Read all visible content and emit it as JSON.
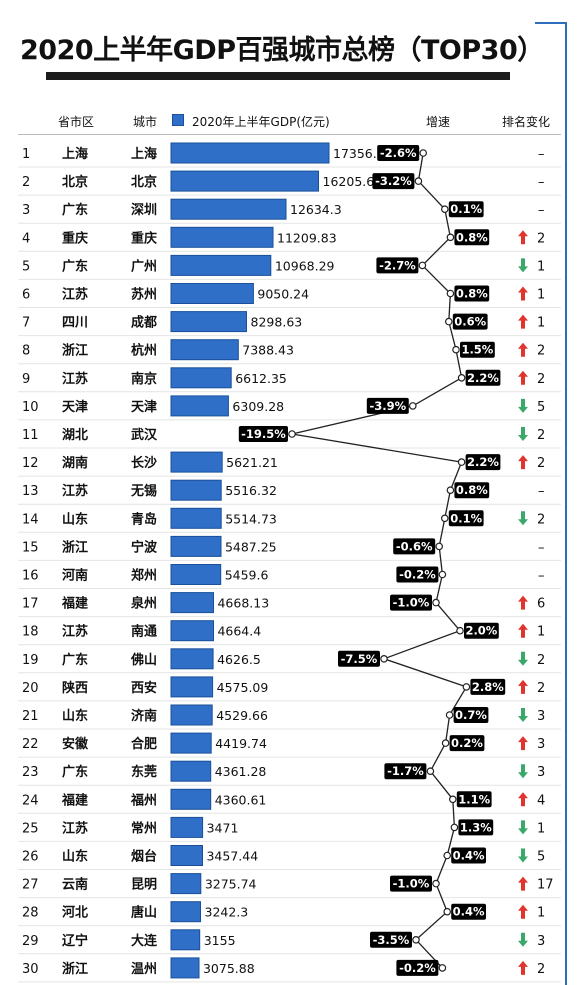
{
  "title": "2020上半年GDP百强城市总榜（TOP30）",
  "headers": {
    "province": "省市区",
    "city": "城市",
    "gdp": "2020年上半年GDP(亿元)",
    "growth": "增速",
    "rank_change": "排名变化"
  },
  "colors": {
    "bar": "#2f6fc7",
    "bar_border": "#1a4f9a",
    "up_arrow": "#e0342f",
    "down_arrow": "#3aa86b",
    "growth_label_bg": "#000000",
    "growth_label_text": "#ffffff"
  },
  "chart_data": {
    "type": "bar",
    "orientation": "horizontal",
    "xlim": [
      0,
      18000
    ],
    "series": [
      {
        "name": "2020年上半年GDP(亿元)",
        "values": [
          17356.8,
          16205.6,
          12634.3,
          11209.83,
          10968.29,
          9050.24,
          8298.63,
          7388.43,
          6612.35,
          6309.28,
          null,
          5621.21,
          5516.32,
          5514.73,
          5487.25,
          5459.6,
          4668.13,
          4664.4,
          4626.5,
          4575.09,
          4529.66,
          4419.74,
          4361.28,
          4360.61,
          3471,
          3457.44,
          3275.74,
          3242.3,
          3155,
          3075.88
        ]
      },
      {
        "name": "增速",
        "values": [
          -2.6,
          -3.2,
          0.1,
          0.8,
          -2.7,
          0.8,
          0.6,
          1.5,
          2.2,
          -3.9,
          -19.5,
          2.2,
          0.8,
          0.1,
          -0.6,
          -0.2,
          -1.0,
          2.0,
          -7.5,
          2.8,
          0.7,
          0.2,
          -1.7,
          1.1,
          1.3,
          0.4,
          -1.0,
          0.4,
          -3.5,
          -0.2
        ]
      }
    ],
    "rows": [
      {
        "rank": "1",
        "province": "上海",
        "city": "上海",
        "gdp_label": "17356.8",
        "growth_label": "-2.6%",
        "change_dir": "",
        "change": "–"
      },
      {
        "rank": "2",
        "province": "北京",
        "city": "北京",
        "gdp_label": "16205.6",
        "growth_label": "-3.2%",
        "change_dir": "",
        "change": "–"
      },
      {
        "rank": "3",
        "province": "广东",
        "city": "深圳",
        "gdp_label": "12634.3",
        "growth_label": "0.1%",
        "change_dir": "",
        "change": "–"
      },
      {
        "rank": "4",
        "province": "重庆",
        "city": "重庆",
        "gdp_label": "11209.83",
        "growth_label": "0.8%",
        "change_dir": "up",
        "change": "2"
      },
      {
        "rank": "5",
        "province": "广东",
        "city": "广州",
        "gdp_label": "10968.29",
        "growth_label": "-2.7%",
        "change_dir": "down",
        "change": "1"
      },
      {
        "rank": "6",
        "province": "江苏",
        "city": "苏州",
        "gdp_label": "9050.24",
        "growth_label": "0.8%",
        "change_dir": "up",
        "change": "1"
      },
      {
        "rank": "7",
        "province": "四川",
        "city": "成都",
        "gdp_label": "8298.63",
        "growth_label": "0.6%",
        "change_dir": "up",
        "change": "1"
      },
      {
        "rank": "8",
        "province": "浙江",
        "city": "杭州",
        "gdp_label": "7388.43",
        "growth_label": "1.5%",
        "change_dir": "up",
        "change": "2"
      },
      {
        "rank": "9",
        "province": "江苏",
        "city": "南京",
        "gdp_label": "6612.35",
        "growth_label": "2.2%",
        "change_dir": "up",
        "change": "2"
      },
      {
        "rank": "10",
        "province": "天津",
        "city": "天津",
        "gdp_label": "6309.28",
        "growth_label": "-3.9%",
        "change_dir": "down",
        "change": "5"
      },
      {
        "rank": "11",
        "province": "湖北",
        "city": "武汉",
        "gdp_label": "",
        "growth_label": "-19.5%",
        "change_dir": "down",
        "change": "2"
      },
      {
        "rank": "12",
        "province": "湖南",
        "city": "长沙",
        "gdp_label": "5621.21",
        "growth_label": "2.2%",
        "change_dir": "up",
        "change": "2"
      },
      {
        "rank": "13",
        "province": "江苏",
        "city": "无锡",
        "gdp_label": "5516.32",
        "growth_label": "0.8%",
        "change_dir": "",
        "change": "–"
      },
      {
        "rank": "14",
        "province": "山东",
        "city": "青岛",
        "gdp_label": "5514.73",
        "growth_label": "0.1%",
        "change_dir": "down",
        "change": "2"
      },
      {
        "rank": "15",
        "province": "浙江",
        "city": "宁波",
        "gdp_label": "5487.25",
        "growth_label": "-0.6%",
        "change_dir": "",
        "change": "–"
      },
      {
        "rank": "16",
        "province": "河南",
        "city": "郑州",
        "gdp_label": "5459.6",
        "growth_label": "-0.2%",
        "change_dir": "",
        "change": "–"
      },
      {
        "rank": "17",
        "province": "福建",
        "city": "泉州",
        "gdp_label": "4668.13",
        "growth_label": "-1.0%",
        "change_dir": "up",
        "change": "6"
      },
      {
        "rank": "18",
        "province": "江苏",
        "city": "南通",
        "gdp_label": "4664.4",
        "growth_label": "2.0%",
        "change_dir": "up",
        "change": "1"
      },
      {
        "rank": "19",
        "province": "广东",
        "city": "佛山",
        "gdp_label": "4626.5",
        "growth_label": "-7.5%",
        "change_dir": "down",
        "change": "2"
      },
      {
        "rank": "20",
        "province": "陕西",
        "city": "西安",
        "gdp_label": "4575.09",
        "growth_label": "2.8%",
        "change_dir": "up",
        "change": "2"
      },
      {
        "rank": "21",
        "province": "山东",
        "city": "济南",
        "gdp_label": "4529.66",
        "growth_label": "0.7%",
        "change_dir": "down",
        "change": "3"
      },
      {
        "rank": "22",
        "province": "安徽",
        "city": "合肥",
        "gdp_label": "4419.74",
        "growth_label": "0.2%",
        "change_dir": "up",
        "change": "3"
      },
      {
        "rank": "23",
        "province": "广东",
        "city": "东莞",
        "gdp_label": "4361.28",
        "growth_label": "-1.7%",
        "change_dir": "down",
        "change": "3"
      },
      {
        "rank": "24",
        "province": "福建",
        "city": "福州",
        "gdp_label": "4360.61",
        "growth_label": "1.1%",
        "change_dir": "up",
        "change": "4"
      },
      {
        "rank": "25",
        "province": "江苏",
        "city": "常州",
        "gdp_label": "3471",
        "growth_label": "1.3%",
        "change_dir": "down",
        "change": "1"
      },
      {
        "rank": "26",
        "province": "山东",
        "city": "烟台",
        "gdp_label": "3457.44",
        "growth_label": "0.4%",
        "change_dir": "down",
        "change": "5"
      },
      {
        "rank": "27",
        "province": "云南",
        "city": "昆明",
        "gdp_label": "3275.74",
        "growth_label": "-1.0%",
        "change_dir": "up",
        "change": "17"
      },
      {
        "rank": "28",
        "province": "河北",
        "city": "唐山",
        "gdp_label": "3242.3",
        "growth_label": "0.4%",
        "change_dir": "up",
        "change": "1"
      },
      {
        "rank": "29",
        "province": "辽宁",
        "city": "大连",
        "gdp_label": "3155",
        "growth_label": "-3.5%",
        "change_dir": "down",
        "change": "3"
      },
      {
        "rank": "30",
        "province": "浙江",
        "city": "温州",
        "gdp_label": "3075.88",
        "growth_label": "-0.2%",
        "change_dir": "up",
        "change": "2"
      }
    ]
  }
}
